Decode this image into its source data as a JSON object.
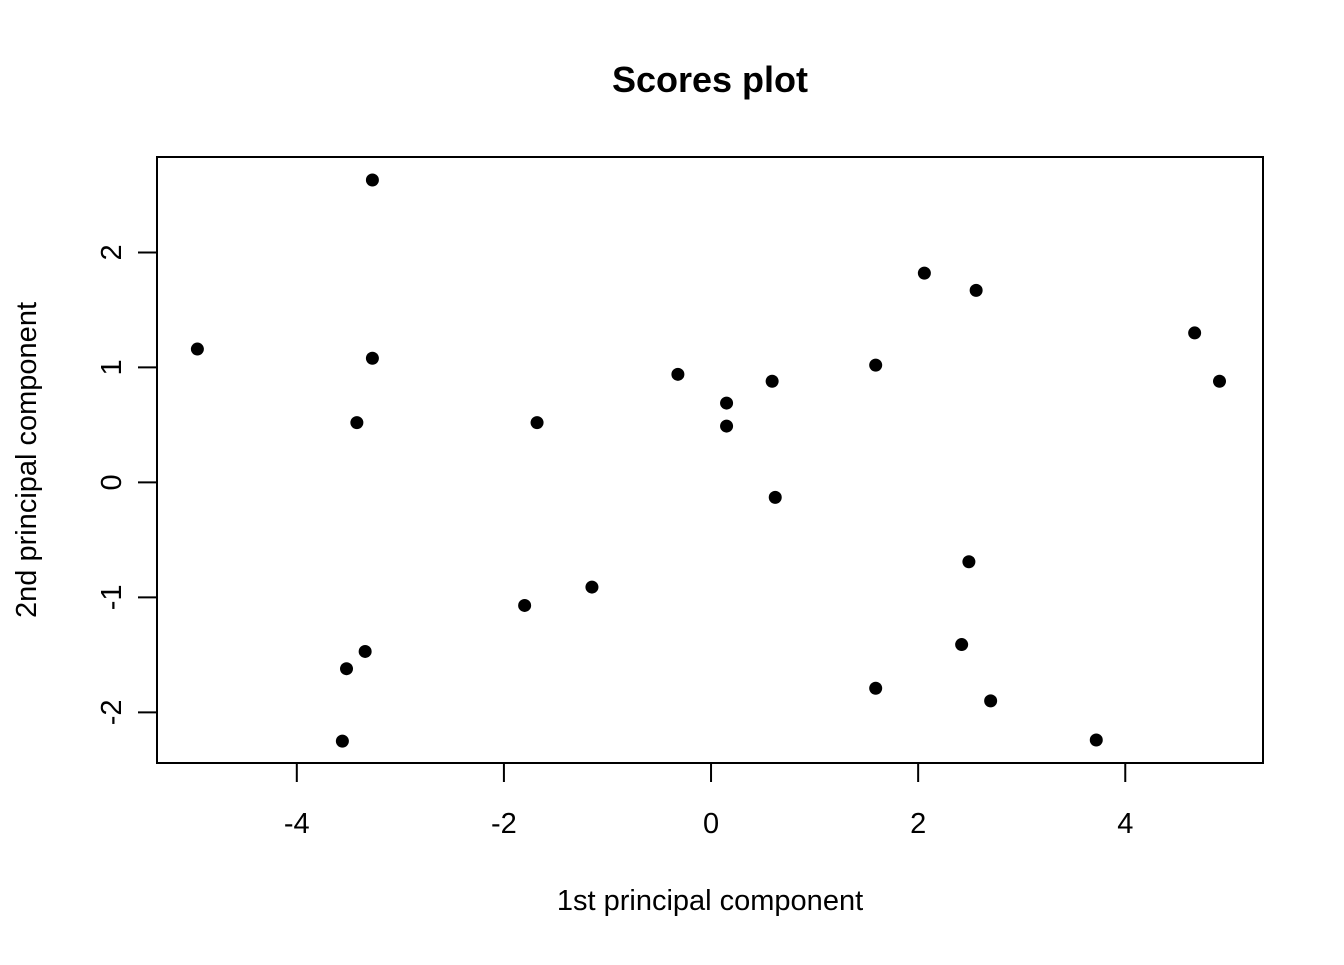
{
  "chart_data": {
    "type": "scatter",
    "title": "Scores plot",
    "xlabel": "1st principal component",
    "ylabel": "2nd principal component",
    "xlim": [
      -5.35,
      5.33
    ],
    "ylim": [
      -2.44,
      2.83
    ],
    "xticks": [
      -4,
      -2,
      0,
      2,
      4
    ],
    "yticks": [
      -2,
      -1,
      0,
      1,
      2
    ],
    "grid": false,
    "legend": "none",
    "point_color": "#000000",
    "series": [
      {
        "points": [
          {
            "x": -4.96,
            "y": 1.16
          },
          {
            "x": -3.27,
            "y": 2.63
          },
          {
            "x": -3.27,
            "y": 1.08
          },
          {
            "x": -3.42,
            "y": 0.52
          },
          {
            "x": -3.34,
            "y": -1.47
          },
          {
            "x": -3.52,
            "y": -1.62
          },
          {
            "x": -3.56,
            "y": -2.25
          },
          {
            "x": -1.68,
            "y": 0.52
          },
          {
            "x": -1.8,
            "y": -1.07
          },
          {
            "x": -1.15,
            "y": -0.91
          },
          {
            "x": -0.32,
            "y": 0.94
          },
          {
            "x": 0.15,
            "y": 0.69
          },
          {
            "x": 0.15,
            "y": 0.49
          },
          {
            "x": 0.59,
            "y": 0.88
          },
          {
            "x": 0.62,
            "y": -0.13
          },
          {
            "x": 1.59,
            "y": 1.02
          },
          {
            "x": 1.59,
            "y": -1.79
          },
          {
            "x": 2.06,
            "y": 1.82
          },
          {
            "x": 2.56,
            "y": 1.67
          },
          {
            "x": 2.49,
            "y": -0.69
          },
          {
            "x": 2.42,
            "y": -1.41
          },
          {
            "x": 2.7,
            "y": -1.9
          },
          {
            "x": 3.72,
            "y": -2.24
          },
          {
            "x": 4.67,
            "y": 1.3
          },
          {
            "x": 4.91,
            "y": 0.88
          }
        ]
      }
    ]
  }
}
